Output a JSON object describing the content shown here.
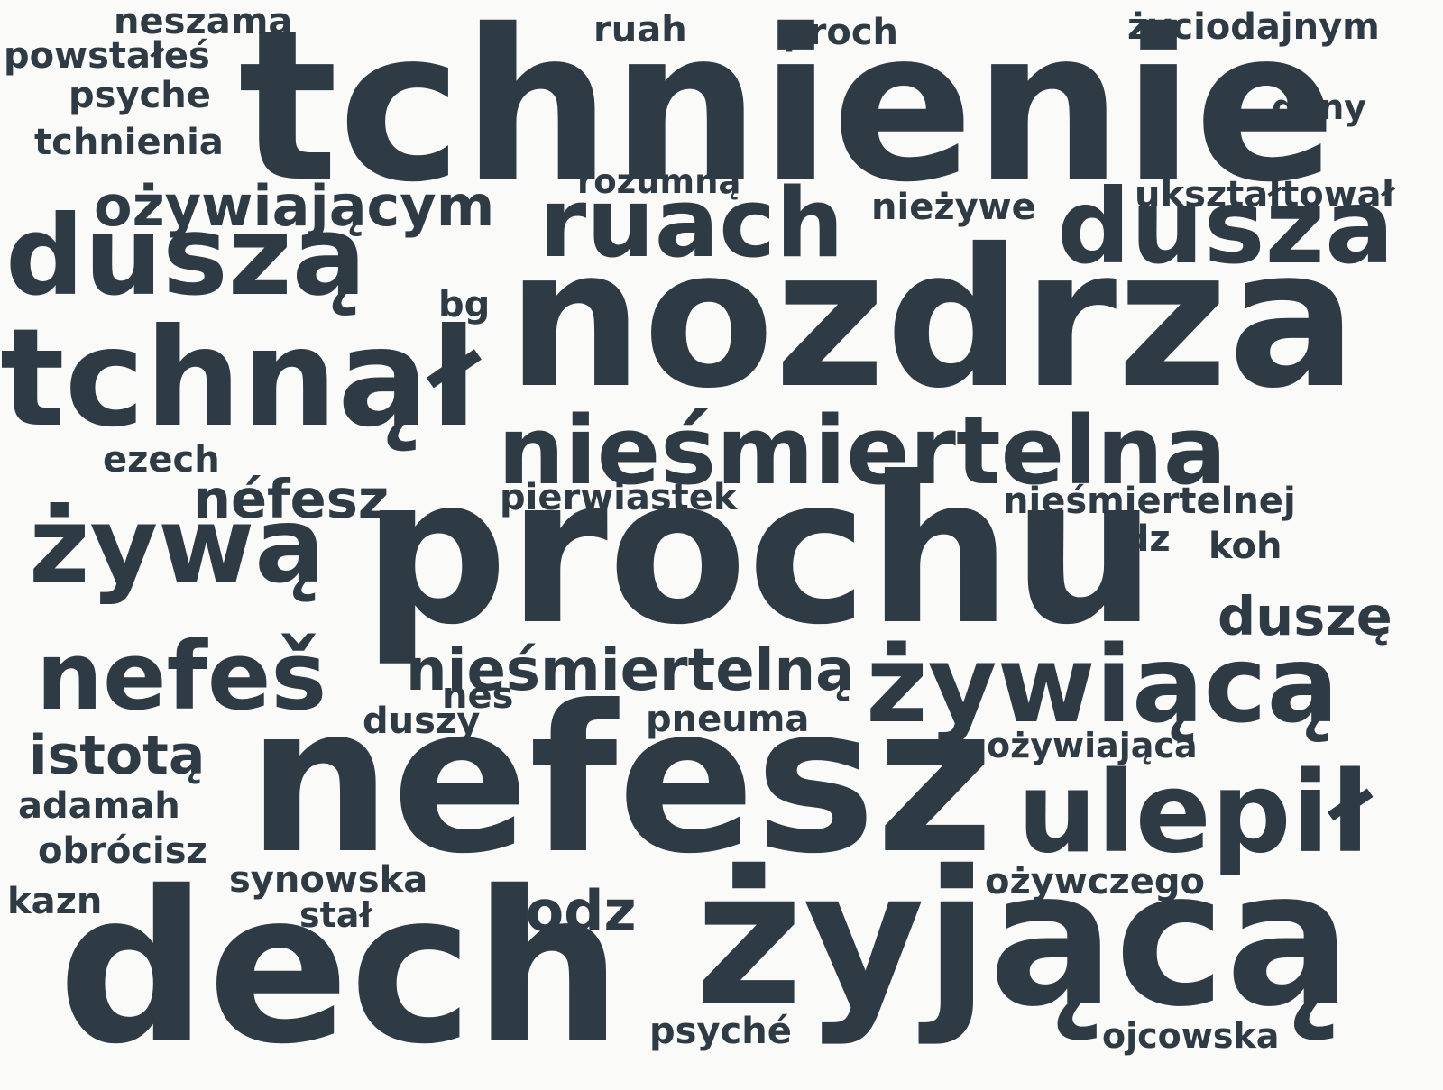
{
  "colors": {
    "background": "#fafaf8",
    "text": "#2e3a44"
  },
  "words": [
    "tchnienie",
    "nozdrza",
    "prochu",
    "nefesz",
    "żyjącą",
    "dech",
    "tchnął",
    "duszą",
    "dusza",
    "ruach",
    "nieśmiertelna",
    "żywą",
    "żywiącą",
    "ulepił",
    "nefeš",
    "nieśmiertelną",
    "ożywiającym",
    "néfesz",
    "istotą",
    "duszę",
    "rodz",
    "neszama",
    "ruah",
    "proch",
    "życiodajnym",
    "powstałeś",
    "psyche",
    "gliny",
    "tchnienia",
    "rozumną",
    "nieżywe",
    "ukształtował",
    "bg",
    "ezech",
    "pierwiastek",
    "nieśmiertelnej",
    "rdz",
    "koh",
    "nes",
    "duszy",
    "pneuma",
    "ożywiająca",
    "adamah",
    "obrócisz",
    "synowska",
    "ożywczego",
    "kazn",
    "stał",
    "psyché",
    "ojcowska"
  ]
}
